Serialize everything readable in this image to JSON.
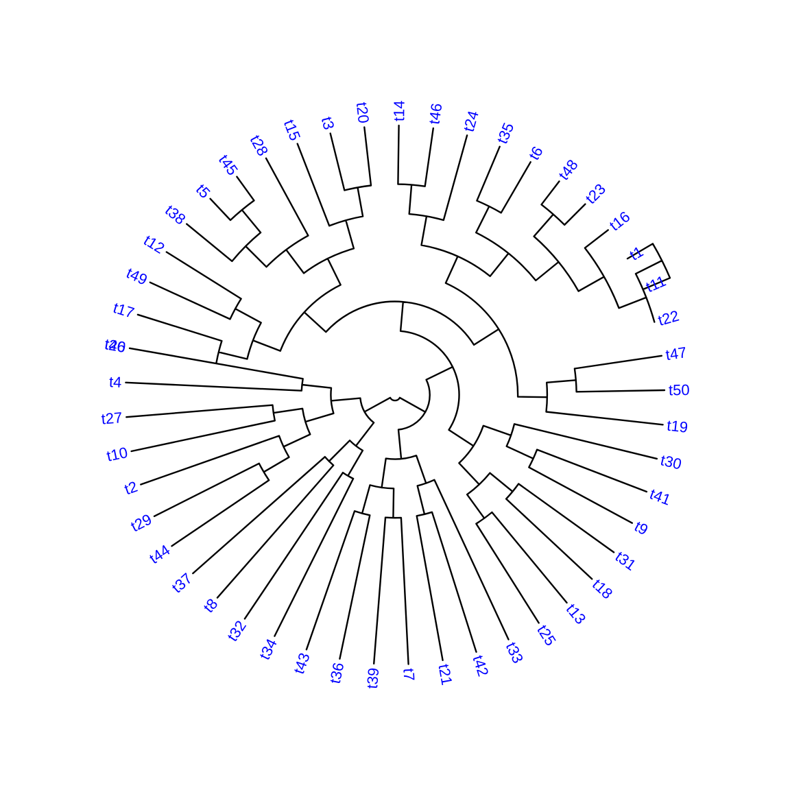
{
  "label_color": "#0000ff",
  "edge_color": "#000000",
  "tree": {
    "c": [
      {
        "c": [
          {
            "c": [
              {
                "c": [
                  {
                    "c": [
                      {
                        "c": [
                          {
                            "c": [
                              {
                                "t": "t40"
                              },
                              {
                                "t": "t17"
                              }
                            ]
                          },
                          {
                            "c": [
                              {
                                "t": "t49"
                              },
                              {
                                "t": "t12"
                              }
                            ]
                          }
                        ]
                      },
                      {
                        "c": [
                          {
                            "c": [
                              {
                                "c": [
                                  {
                                    "t": "t38"
                                  },
                                  {
                                    "c": [
                                      {
                                        "t": "t5"
                                      },
                                      {
                                        "t": "t45"
                                      }
                                    ]
                                  }
                                ]
                              },
                              {
                                "t": "t28"
                              }
                            ]
                          },
                          {
                            "c": [
                              {
                                "t": "t15"
                              },
                              {
                                "c": [
                                  {
                                    "t": "t3"
                                  },
                                  {
                                    "t": "t20"
                                  }
                                ]
                              }
                            ]
                          }
                        ]
                      }
                    ]
                  },
                  {
                    "c": [
                      {
                        "c": [
                          {
                            "c": [
                              {
                                "c": [
                                  {
                                    "t": "t14"
                                  },
                                  {
                                    "t": "t46"
                                  }
                                ]
                              },
                              {
                                "t": "t24"
                              }
                            ]
                          },
                          {
                            "c": [
                              {
                                "c": [
                                  {
                                    "t": "t35"
                                  },
                                  {
                                    "t": "t6"
                                  }
                                ]
                              },
                              {
                                "c": [
                                  {
                                    "c": [
                                      {
                                        "t": "t48"
                                      },
                                      {
                                        "t": "t23"
                                      }
                                    ]
                                  },
                                  {
                                    "c": [
                                      {
                                        "t": "t16"
                                      },
                                      {
                                        "c": [
                                          {
                                            "c": [
                                              {
                                                "t": "t1"
                                              },
                                              {
                                                "t": "t11"
                                              }
                                            ]
                                          },
                                          {
                                            "t": "t22"
                                          }
                                        ]
                                      }
                                    ]
                                  }
                                ]
                              }
                            ]
                          }
                        ]
                      },
                      {
                        "c": [
                          {
                            "c": [
                              {
                                "t": "t47"
                              },
                              {
                                "t": "t50"
                              }
                            ]
                          },
                          {
                            "t": "t19"
                          }
                        ]
                      }
                    ]
                  }
                ]
              },
              {
                "c": [
                  {
                    "c": [
                      {
                        "t": "t30"
                      },
                      {
                        "c": [
                          {
                            "t": "t41"
                          },
                          {
                            "t": "t9"
                          }
                        ]
                      }
                    ]
                  },
                  {
                    "c": [
                      {
                        "c": [
                          {
                            "t": "t31"
                          },
                          {
                            "t": "t18"
                          }
                        ]
                      },
                      {
                        "c": [
                          {
                            "t": "t13"
                          },
                          {
                            "t": "t25"
                          }
                        ]
                      }
                    ]
                  }
                ]
              }
            ]
          },
          {
            "c": [
              {
                "c": [
                  {
                    "t": "t33"
                  },
                  {
                    "c": [
                      {
                        "t": "t42"
                      },
                      {
                        "t": "t21"
                      }
                    ]
                  }
                ]
              },
              {
                "c": [
                  {
                    "c": [
                      {
                        "t": "t7"
                      },
                      {
                        "t": "t39"
                      }
                    ]
                  },
                  {
                    "c": [
                      {
                        "t": "t36"
                      },
                      {
                        "t": "t43"
                      }
                    ]
                  }
                ]
              }
            ]
          }
        ]
      },
      {
        "c": [
          {
            "c": [
              {
                "c": [
                  {
                    "t": "t34"
                  },
                  {
                    "t": "t32"
                  }
                ]
              },
              {
                "c": [
                  {
                    "t": "t8"
                  },
                  {
                    "t": "t37"
                  }
                ]
              }
            ]
          },
          {
            "c": [
              {
                "c": [
                  {
                    "c": [
                      {
                        "c": [
                          {
                            "t": "t44"
                          },
                          {
                            "t": "t29"
                          }
                        ]
                      },
                      {
                        "t": "t2"
                      }
                    ]
                  },
                  {
                    "c": [
                      {
                        "t": "t10"
                      },
                      {
                        "t": "t27"
                      }
                    ]
                  }
                ]
              },
              {
                "c": [
                  {
                    "t": "t4"
                  },
                  {
                    "t": "t26"
                  }
                ]
              }
            ]
          }
        ]
      }
    ]
  }
}
